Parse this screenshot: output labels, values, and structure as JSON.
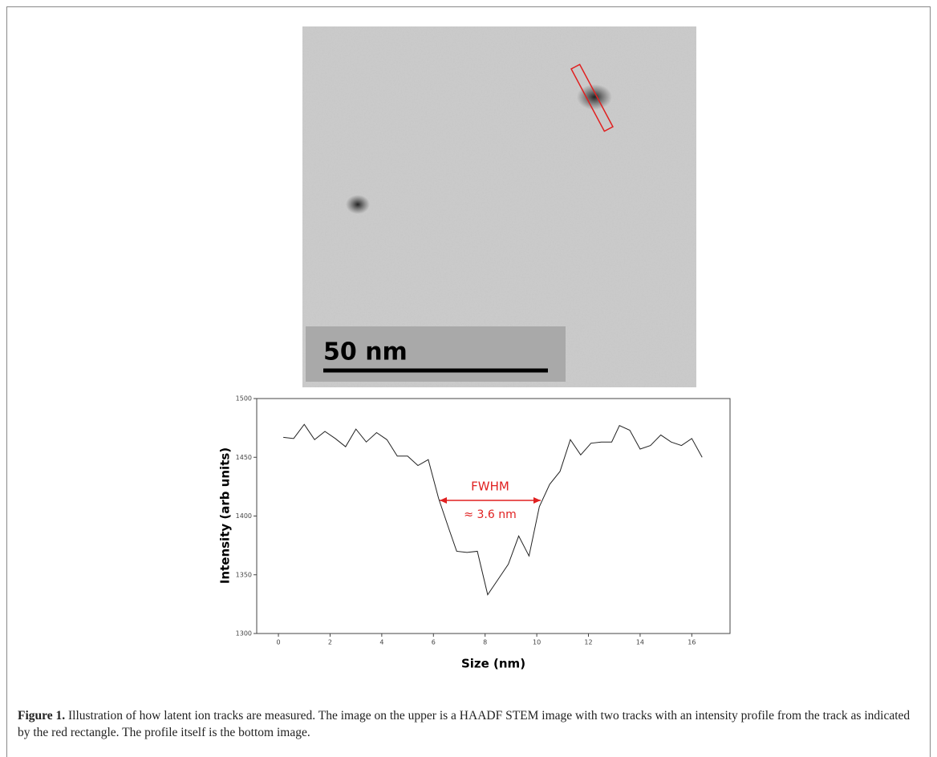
{
  "figure": {
    "scale_bar_label": "50 nm"
  },
  "chart_data": {
    "type": "line",
    "x_label": "Size (nm)",
    "y_label": "Intensity (arb units)",
    "annotation": "FWHM",
    "annotation_value": "≈ 3.6 nm",
    "x": [
      0.19,
      0.59,
      1.0,
      1.4,
      1.8,
      2.2,
      2.6,
      3.0,
      3.4,
      3.8,
      4.2,
      4.6,
      5.0,
      5.4,
      5.8,
      6.2,
      6.6,
      6.9,
      7.3,
      7.7,
      8.1,
      8.5,
      8.9,
      9.3,
      9.7,
      10.1,
      10.5,
      10.9,
      11.3,
      11.7,
      12.1,
      12.5,
      12.9,
      13.2,
      13.6,
      14.0,
      14.4,
      14.8,
      15.2,
      15.6,
      16.0,
      16.4
    ],
    "series": [
      {
        "color": "#222222",
        "values": [
          1467,
          1466,
          1478,
          1465,
          1472,
          1466,
          1459,
          1474,
          1463,
          1471,
          1465,
          1451,
          1451,
          1443,
          1448,
          1415,
          1389,
          1370,
          1369,
          1370,
          1333,
          1346,
          1359,
          1383,
          1366,
          1408,
          1427,
          1438,
          1465,
          1452,
          1462,
          1463,
          1463,
          1477,
          1473,
          1457,
          1460,
          1469,
          1463,
          1460,
          1466,
          1450
        ]
      }
    ],
    "xlim": [
      -0.84,
      17.48
    ],
    "ylim": [
      1300,
      1500
    ],
    "xticks": [
      0,
      2,
      4,
      6,
      8,
      10,
      12,
      14,
      16
    ],
    "yticks": [
      1300,
      1350,
      1400,
      1450,
      1500
    ]
  },
  "caption": {
    "label": "Figure 1.",
    "text": "Illustration of how latent ion tracks are measured. The image on the upper is a HAADF STEM image with two tracks with an intensity profile from the track as indicated by the red rectangle. The profile itself is the bottom image."
  }
}
